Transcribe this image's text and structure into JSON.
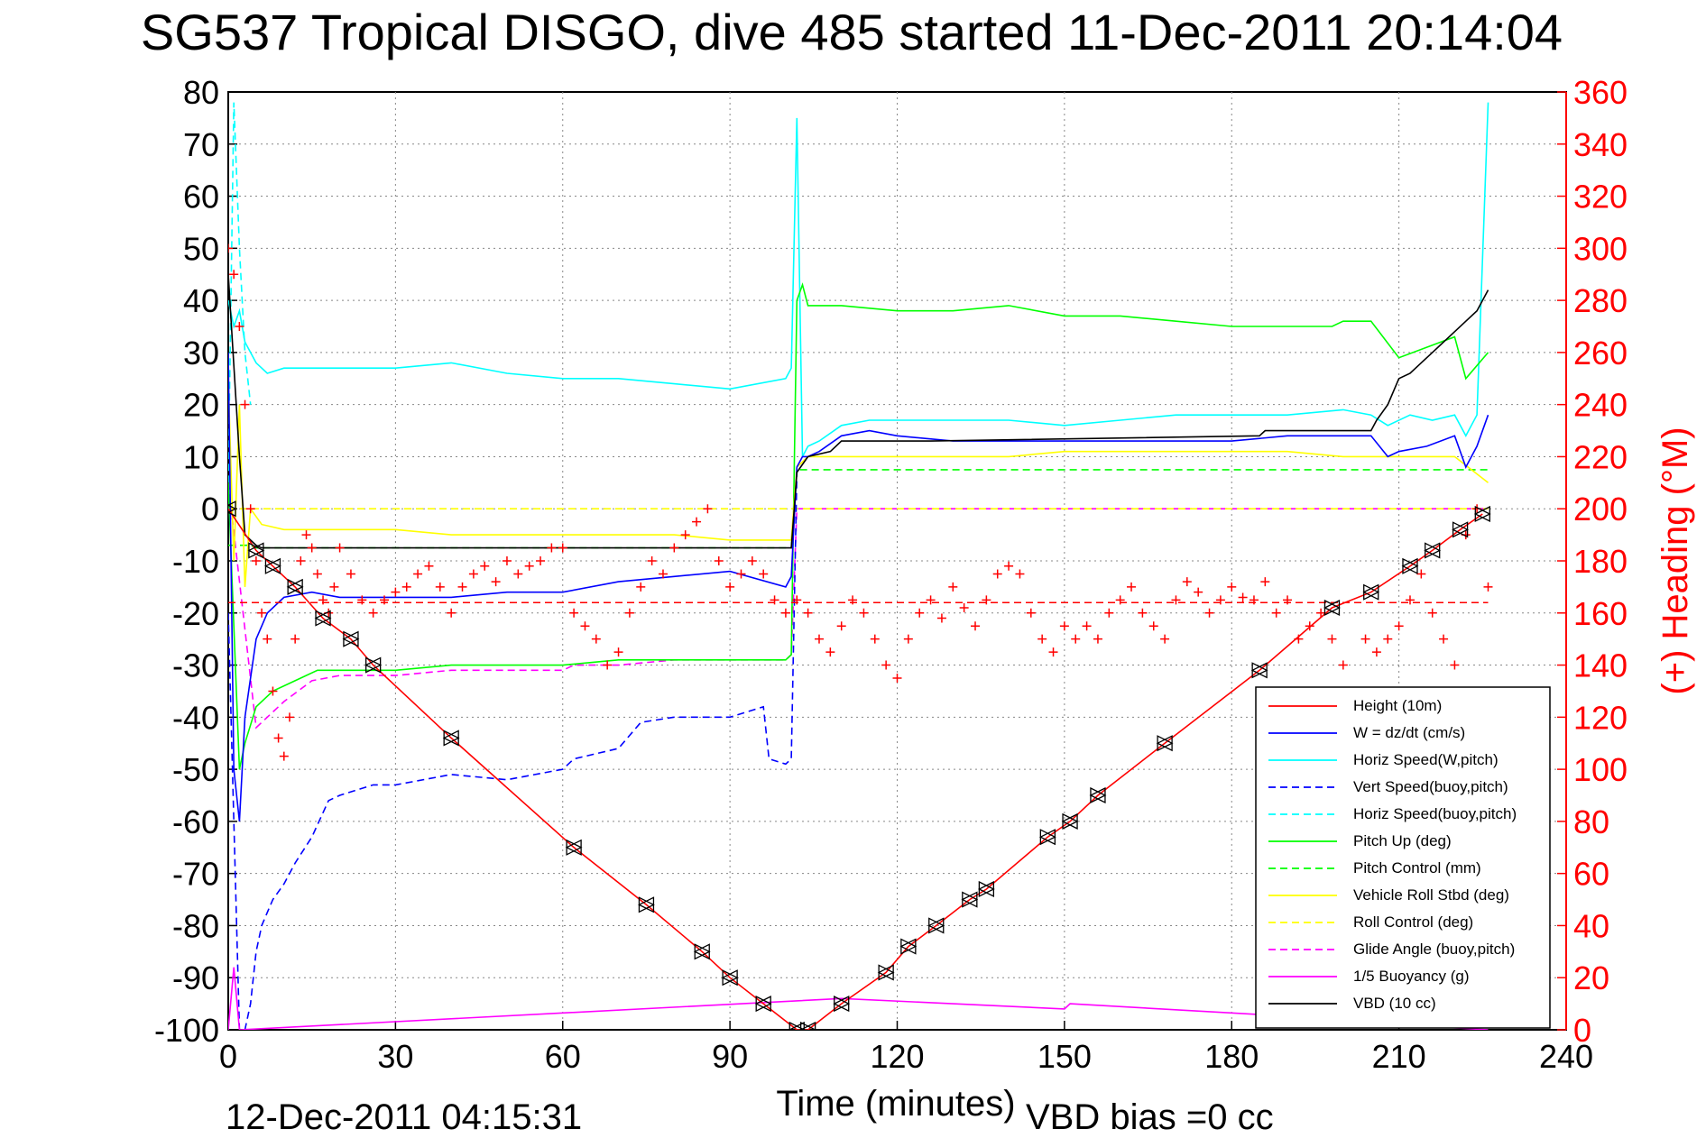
{
  "chart_data": {
    "type": "line",
    "title": "SG537 Tropical DISGO, dive 485 started 11-Dec-2011 20:14:04",
    "xlabel": "Time (minutes)",
    "ylabel_right": "(+) Heading (°M)",
    "footer_left": "12-Dec-2011 04:15:31",
    "footer_right": "VBD bias =0 cc",
    "xlim": [
      0,
      240
    ],
    "ylim": [
      -100,
      80
    ],
    "ylim_right": [
      0,
      360
    ],
    "xticks": [
      "0",
      "30",
      "60",
      "90",
      "120",
      "150",
      "180",
      "210",
      "240"
    ],
    "yticks": [
      "80",
      "70",
      "60",
      "50",
      "40",
      "30",
      "20",
      "10",
      "0",
      "-10",
      "-20",
      "-30",
      "-40",
      "-50",
      "-60",
      "-70",
      "-80",
      "-90",
      "-100"
    ],
    "yticks_right": [
      "360",
      "340",
      "320",
      "300",
      "280",
      "260",
      "240",
      "220",
      "200",
      "180",
      "160",
      "140",
      "120",
      "100",
      "80",
      "60",
      "40",
      "20",
      "0"
    ],
    "grid": true,
    "legend_position": "bottom-right",
    "series": [
      {
        "name": "Height (10m)",
        "color": "#ff0000",
        "style": "solid",
        "x": [
          0,
          5,
          8,
          12,
          17,
          22,
          26,
          40,
          62,
          75,
          85,
          90,
          96,
          102,
          104,
          110,
          118,
          122,
          127,
          133,
          136,
          147,
          151,
          156,
          168,
          185,
          198,
          205,
          212,
          216,
          221,
          225
        ],
        "y": [
          0,
          -8,
          -11,
          -15,
          -21,
          -25,
          -30,
          -44,
          -65,
          -76,
          -85,
          -90,
          -95,
          -100,
          -100,
          -95,
          -89,
          -84,
          -80,
          -75,
          -73,
          -63,
          -60,
          -55,
          -45,
          -31,
          -19,
          -16,
          -11,
          -8,
          -4,
          -1
        ]
      },
      {
        "name": "W = dz/dt (cm/s)",
        "color": "#0000ff",
        "style": "solid",
        "x": [
          0,
          1,
          2,
          3,
          5,
          7,
          10,
          15,
          20,
          30,
          40,
          50,
          60,
          70,
          80,
          90,
          100,
          101,
          102,
          103,
          104,
          106,
          110,
          115,
          120,
          130,
          140,
          150,
          160,
          170,
          180,
          190,
          200,
          205,
          208,
          210,
          215,
          220,
          222,
          224,
          226
        ],
        "y": [
          30,
          -50,
          -60,
          -40,
          -25,
          -20,
          -17,
          -16,
          -17,
          -17,
          -17,
          -16,
          -16,
          -14,
          -13,
          -12,
          -15,
          -13,
          8,
          10,
          10,
          11,
          14,
          15,
          14,
          13,
          13,
          13,
          13,
          13,
          13,
          14,
          14,
          14,
          10,
          11,
          12,
          14,
          8,
          12,
          18
        ]
      },
      {
        "name": "Horiz Speed(W,pitch)",
        "color": "#00ffff",
        "style": "solid",
        "x": [
          0,
          1,
          2,
          3,
          5,
          7,
          10,
          15,
          20,
          30,
          40,
          50,
          60,
          70,
          80,
          90,
          100,
          101,
          102,
          103,
          104,
          106,
          110,
          115,
          120,
          130,
          140,
          150,
          160,
          170,
          180,
          190,
          200,
          205,
          208,
          212,
          216,
          220,
          222,
          224,
          226
        ],
        "y": [
          40,
          35,
          38,
          32,
          28,
          26,
          27,
          27,
          27,
          27,
          28,
          26,
          25,
          25,
          24,
          23,
          25,
          27,
          75,
          10,
          12,
          13,
          16,
          17,
          17,
          17,
          17,
          16,
          17,
          18,
          18,
          18,
          19,
          18,
          16,
          18,
          17,
          18,
          14,
          18,
          78
        ]
      },
      {
        "name": "Vert Speed(buoy,pitch)",
        "color": "#0000ff",
        "style": "dashed",
        "x": [
          0,
          2,
          3,
          4,
          5,
          6,
          8,
          10,
          12,
          15,
          18,
          20,
          26,
          30,
          40,
          50,
          60,
          62,
          70,
          74,
          80,
          90,
          96,
          97,
          100,
          101,
          102
        ],
        "y": [
          -20,
          -100,
          -100,
          -95,
          -85,
          -80,
          -75,
          -72,
          -68,
          -63,
          -56,
          -55,
          -53,
          -53,
          -51,
          -52,
          -50,
          -48,
          -46,
          -41,
          -40,
          -40,
          -38,
          -48,
          -49,
          -48,
          7
        ]
      },
      {
        "name": "Horiz Speed(buoy,pitch)",
        "color": "#00ffff",
        "style": "dashed",
        "x": [
          0,
          1,
          2,
          3,
          4
        ],
        "y": [
          5,
          78,
          50,
          30,
          20
        ]
      },
      {
        "name": "Pitch Up (deg)",
        "color": "#00ff00",
        "style": "solid",
        "x": [
          0,
          2,
          3,
          5,
          8,
          12,
          16,
          20,
          30,
          40,
          50,
          60,
          70,
          80,
          90,
          100,
          101,
          102,
          103,
          104,
          110,
          120,
          130,
          140,
          150,
          160,
          170,
          180,
          190,
          198,
          200,
          205,
          210,
          215,
          220,
          222,
          226
        ],
        "y": [
          5,
          -50,
          -45,
          -38,
          -35,
          -33,
          -31,
          -31,
          -31,
          -30,
          -30,
          -30,
          -29,
          -29,
          -29,
          -29,
          -28,
          40,
          43,
          39,
          39,
          38,
          38,
          39,
          37,
          37,
          36,
          35,
          35,
          35,
          36,
          36,
          29,
          31,
          33,
          25,
          30
        ]
      },
      {
        "name": "Pitch Control (mm)",
        "color": "#00ff00",
        "style": "dashed",
        "x": [
          0,
          4,
          5,
          101,
          102,
          103,
          226
        ],
        "y": [
          -7,
          -7,
          -7.5,
          -7.5,
          7.5,
          7.5,
          7.5
        ]
      },
      {
        "name": "Vehicle Roll Stbd (deg)",
        "color": "#ffff00",
        "style": "solid",
        "x": [
          0,
          1,
          2,
          3,
          4,
          6,
          10,
          20,
          30,
          40,
          50,
          60,
          70,
          80,
          90,
          100,
          101,
          102,
          103,
          104,
          110,
          120,
          130,
          140,
          150,
          160,
          170,
          180,
          190,
          200,
          210,
          220,
          226
        ],
        "y": [
          25,
          -10,
          20,
          -15,
          0,
          -3,
          -4,
          -4,
          -4,
          -5,
          -5,
          -5,
          -5,
          -5,
          -6,
          -6,
          -6,
          8,
          9,
          10,
          10,
          10,
          10,
          10,
          11,
          11,
          11,
          11,
          11,
          10,
          10,
          10,
          5
        ]
      },
      {
        "name": "Roll Control (deg)",
        "color": "#ffff00",
        "style": "dashed",
        "x": [
          0,
          5,
          100,
          101,
          102,
          103,
          226
        ],
        "y": [
          0,
          0,
          0,
          0,
          0,
          0,
          0
        ]
      },
      {
        "name": "Glide Angle (buoy,pitch)",
        "color": "#ff00ff",
        "style": "dashed",
        "x": [
          0,
          5,
          10,
          15,
          20,
          30,
          40,
          50,
          60,
          62,
          70,
          80,
          90,
          100,
          101,
          102,
          226
        ],
        "y": [
          5,
          -42,
          -37,
          -33,
          -32,
          -32,
          -31,
          -31,
          -31,
          -30,
          -30,
          -29,
          -29,
          -29,
          -28,
          0,
          0
        ]
      },
      {
        "name": "1/5 Buoyancy (g)",
        "color": "#ff00ff",
        "style": "solid",
        "x": [
          0,
          1,
          2,
          110,
          150,
          151,
          200,
          210,
          226
        ],
        "y": [
          -100,
          -88,
          -100,
          -94,
          -96,
          -95,
          -98,
          -99,
          -100
        ]
      },
      {
        "name": "VBD (10 cc)",
        "color": "#000000",
        "style": "solid",
        "x": [
          0,
          2,
          3,
          5,
          6,
          101,
          102,
          104,
          108,
          109,
          110,
          125,
          126,
          185,
          186,
          205,
          206,
          208,
          210,
          212,
          214,
          216,
          218,
          220,
          222,
          224,
          226
        ],
        "y": [
          45,
          10,
          -5,
          -7,
          -7.5,
          -7.5,
          7,
          10,
          11,
          12,
          13,
          13,
          13,
          14,
          15,
          15,
          17,
          20,
          25,
          26,
          28,
          30,
          32,
          34,
          36,
          38,
          42
        ]
      }
    ],
    "heading_series": {
      "name": "Heading",
      "color": "#ff0000",
      "marker": "+",
      "mean": 164,
      "x": [
        0,
        1,
        2,
        3,
        4,
        5,
        6,
        7,
        8,
        9,
        10,
        11,
        12,
        13,
        14,
        15,
        16,
        17,
        18,
        19,
        20,
        22,
        24,
        26,
        28,
        30,
        32,
        34,
        36,
        38,
        40,
        42,
        44,
        46,
        48,
        50,
        52,
        54,
        56,
        58,
        60,
        62,
        64,
        66,
        68,
        70,
        72,
        74,
        76,
        78,
        80,
        82,
        84,
        86,
        88,
        90,
        92,
        94,
        96,
        98,
        100,
        102,
        104,
        106,
        108,
        110,
        112,
        114,
        116,
        118,
        120,
        122,
        124,
        126,
        128,
        130,
        132,
        134,
        136,
        138,
        140,
        142,
        144,
        146,
        148,
        150,
        152,
        154,
        156,
        158,
        160,
        162,
        164,
        166,
        168,
        170,
        172,
        174,
        176,
        178,
        180,
        182,
        184,
        186,
        188,
        190,
        192,
        194,
        196,
        198,
        200,
        202,
        204,
        206,
        208,
        210,
        212,
        214,
        216,
        218,
        220,
        222,
        224,
        226
      ],
      "y": [
        300,
        290,
        270,
        240,
        200,
        180,
        160,
        150,
        130,
        112,
        105,
        120,
        150,
        180,
        190,
        185,
        175,
        165,
        160,
        170,
        185,
        175,
        165,
        160,
        165,
        168,
        170,
        175,
        178,
        170,
        160,
        170,
        175,
        178,
        172,
        180,
        175,
        178,
        180,
        185,
        185,
        160,
        155,
        150,
        140,
        145,
        160,
        170,
        180,
        175,
        185,
        190,
        195,
        200,
        180,
        170,
        175,
        180,
        175,
        165,
        160,
        165,
        160,
        150,
        145,
        155,
        165,
        160,
        150,
        140,
        135,
        150,
        160,
        165,
        158,
        170,
        162,
        155,
        165,
        175,
        178,
        175,
        160,
        150,
        145,
        155,
        150,
        155,
        150,
        160,
        165,
        170,
        160,
        155,
        150,
        165,
        172,
        168,
        160,
        165,
        170,
        166,
        165,
        172,
        160,
        165,
        150,
        155,
        160,
        150,
        140,
        130,
        150,
        145,
        150,
        155,
        165,
        175,
        160,
        150,
        140,
        190,
        200,
        170
      ]
    }
  }
}
